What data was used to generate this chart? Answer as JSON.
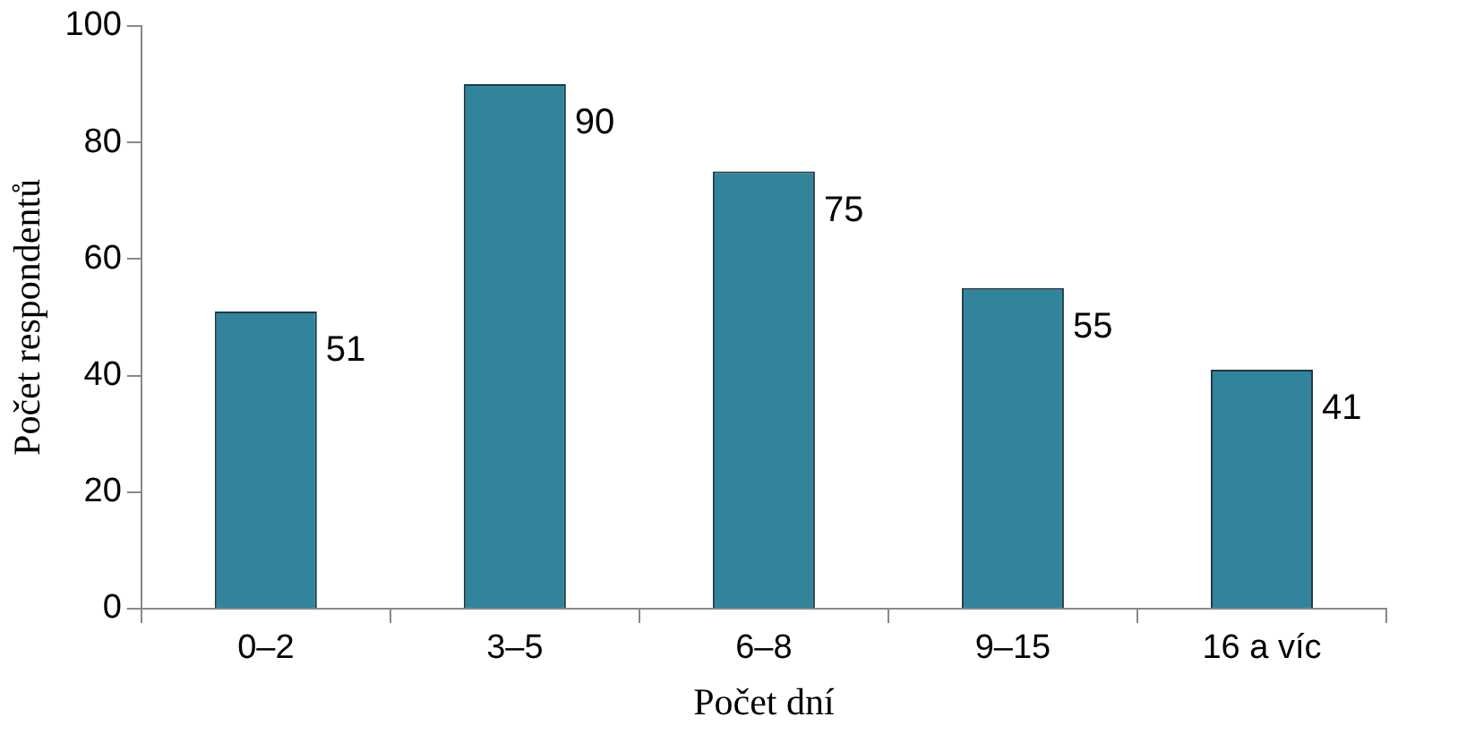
{
  "chart_data": {
    "type": "bar",
    "xlabel": "Počet dní",
    "ylabel": "Počet respondentů",
    "categories": [
      "0–2",
      "3–5",
      "6–8",
      "9–15",
      "16 a víc"
    ],
    "values": [
      51,
      90,
      75,
      55,
      41
    ],
    "color": "#31849b",
    "ylim": [
      0,
      100
    ],
    "yticks": [
      0,
      20,
      40,
      60,
      80,
      100
    ],
    "grid": false,
    "legend": false,
    "data_labels": true
  }
}
